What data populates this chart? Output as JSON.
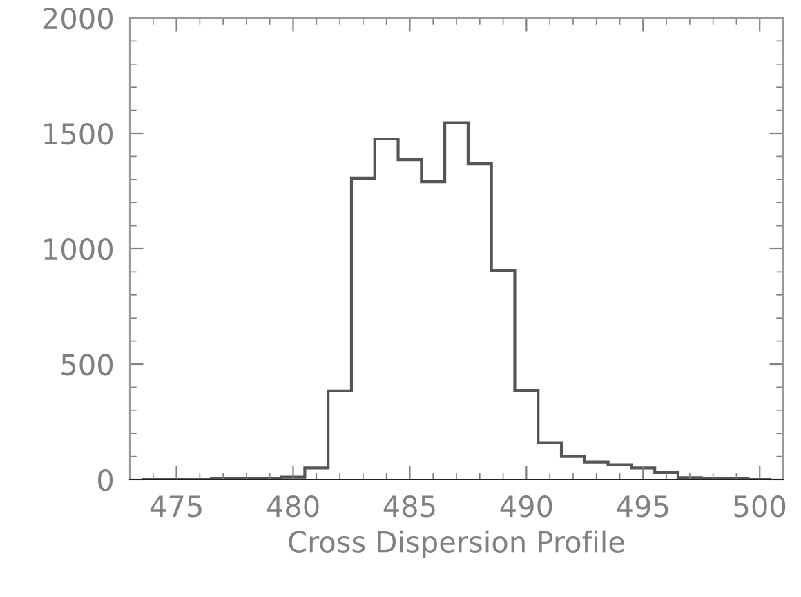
{
  "chart_data": {
    "type": "histogram",
    "xlabel": "Cross Dispersion Profile",
    "color": "#555555",
    "bins": [
      473.5,
      474.5,
      475.5,
      476.5,
      477.5,
      478.5,
      479.5,
      480.5,
      481.5,
      482.5,
      483.5,
      484.5,
      485.5,
      486.5,
      487.5,
      488.5,
      489.5,
      490.5,
      491.5,
      492.5,
      493.5,
      494.5,
      495.5,
      496.5,
      497.5,
      498.5,
      499.5,
      500.5
    ],
    "values": [
      0,
      0,
      0,
      5,
      5,
      5,
      10,
      50,
      384,
      1306,
      1476,
      1386,
      1290,
      1546,
      1368,
      906,
      386,
      160,
      100,
      76,
      64,
      50,
      30,
      8,
      6,
      6,
      0
    ],
    "xlim": [
      473,
      501
    ],
    "xticks": [
      475,
      480,
      485,
      490,
      495,
      500
    ],
    "ylim": [
      0,
      2000
    ],
    "yticks": [
      0,
      500,
      1000,
      1500,
      2000
    ],
    "grid": false
  }
}
